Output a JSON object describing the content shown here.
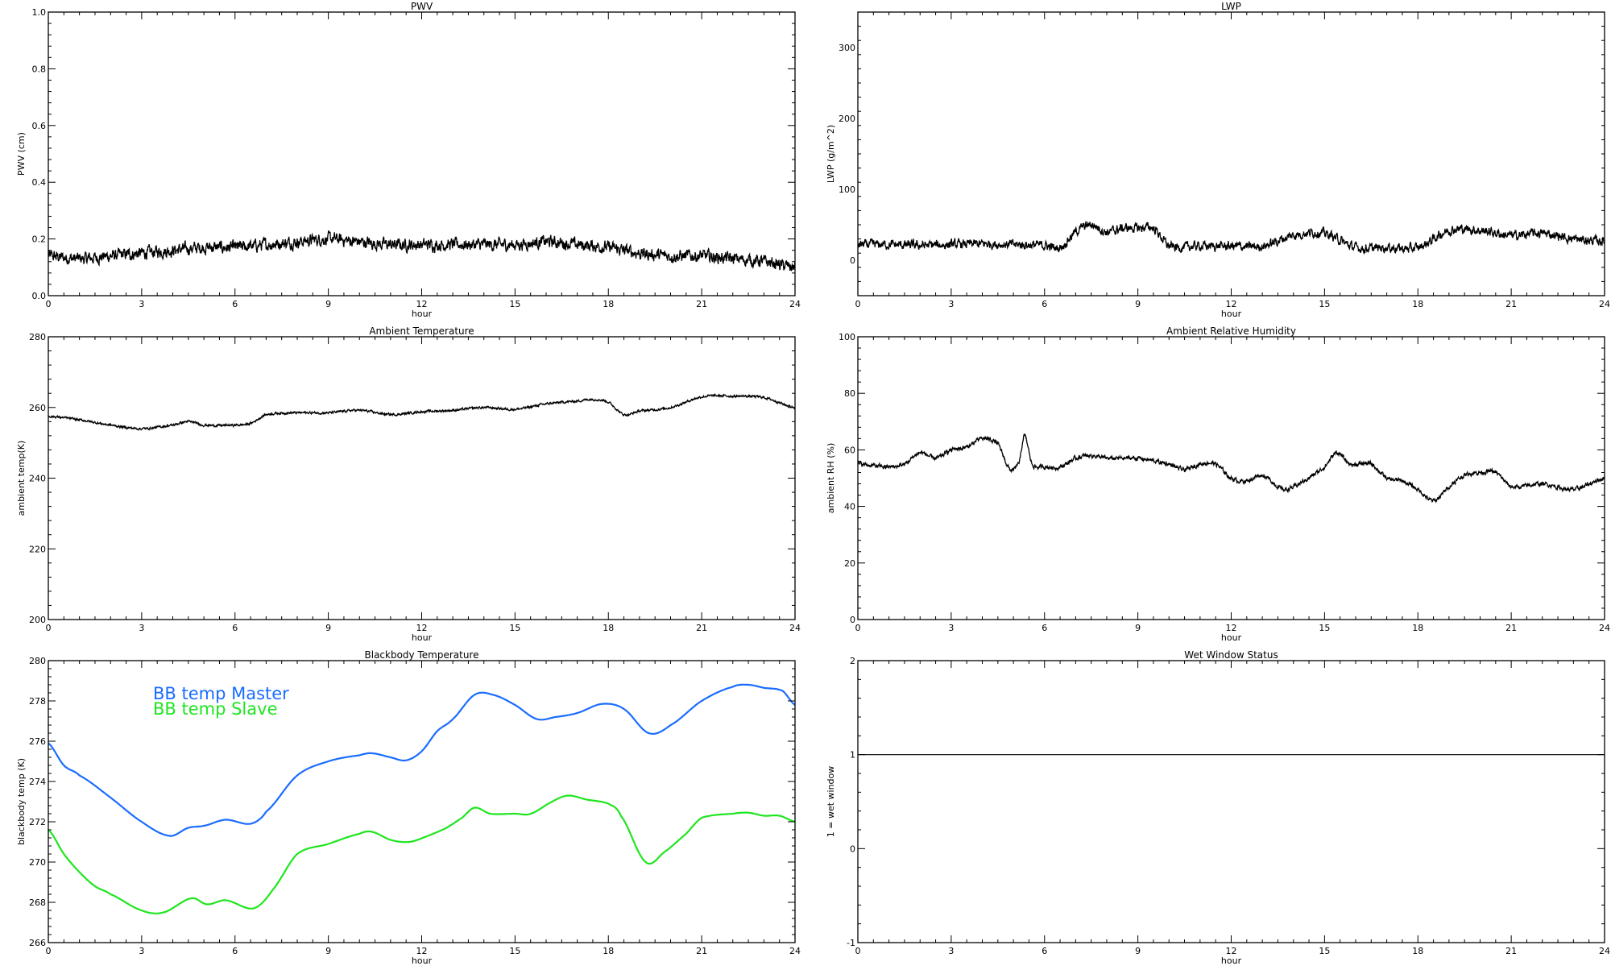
{
  "chart_data": [
    {
      "type": "line",
      "title": "PWV",
      "xlabel": "hour",
      "ylabel": "PWV (cm)",
      "xlim": [
        0,
        24
      ],
      "ylim": [
        0,
        1
      ],
      "xticks": [
        0,
        3,
        6,
        9,
        12,
        15,
        18,
        21,
        24
      ],
      "yticks": [
        0,
        0.2,
        0.4,
        0.6,
        0.8,
        1.0
      ],
      "ytick_labels": [
        "0.0",
        "0.2",
        "0.4",
        "0.6",
        "0.8",
        "1.0"
      ],
      "series": [
        {
          "name": "PWV",
          "color": "#000000",
          "noise": 0.02,
          "x": [
            0,
            1,
            2,
            3,
            4,
            5,
            6,
            7,
            8,
            9,
            10,
            11,
            12,
            13,
            14,
            15,
            16,
            17,
            18,
            19,
            20,
            21,
            22,
            23,
            24
          ],
          "y": [
            0.14,
            0.13,
            0.14,
            0.15,
            0.16,
            0.17,
            0.17,
            0.18,
            0.19,
            0.2,
            0.19,
            0.18,
            0.18,
            0.18,
            0.18,
            0.18,
            0.19,
            0.18,
            0.17,
            0.15,
            0.14,
            0.14,
            0.13,
            0.12,
            0.1
          ]
        }
      ]
    },
    {
      "type": "line",
      "title": "LWP",
      "xlabel": "hour",
      "ylabel": "LWP (g/m^2)",
      "xlim": [
        0,
        24
      ],
      "ylim": [
        -50,
        350
      ],
      "xticks": [
        0,
        3,
        6,
        9,
        12,
        15,
        18,
        21,
        24
      ],
      "yticks": [
        0,
        100,
        200,
        300
      ],
      "ytick_labels": [
        "0",
        "100",
        "200",
        "300"
      ],
      "series": [
        {
          "name": "LWP",
          "color": "#000000",
          "noise": 6,
          "x": [
            0,
            1,
            2,
            3,
            4,
            5,
            6,
            6.5,
            7,
            7.5,
            8,
            8.5,
            9,
            9.5,
            10,
            11,
            12,
            13,
            14,
            15,
            16,
            17,
            18,
            19,
            20,
            21,
            22,
            23,
            24
          ],
          "y": [
            22,
            22,
            21,
            22,
            23,
            22,
            21,
            18,
            40,
            50,
            40,
            45,
            45,
            45,
            20,
            20,
            20,
            20,
            35,
            38,
            18,
            18,
            18,
            42,
            42,
            35,
            38,
            30,
            27
          ]
        }
      ]
    },
    {
      "type": "line",
      "title": "Ambient Temperature",
      "xlabel": "hour",
      "ylabel": "ambient temp(K)",
      "xlim": [
        0,
        24
      ],
      "ylim": [
        200,
        280
      ],
      "xticks": [
        0,
        3,
        6,
        9,
        12,
        15,
        18,
        21,
        24
      ],
      "yticks": [
        200,
        220,
        240,
        260,
        280
      ],
      "ytick_labels": [
        "200",
        "220",
        "240",
        "260",
        "280"
      ],
      "series": [
        {
          "name": "ambient temp",
          "color": "#000000",
          "noise": 0.3,
          "x": [
            0,
            1,
            2,
            3,
            4,
            4.5,
            5,
            6,
            6.5,
            7,
            8,
            9,
            10,
            11,
            12,
            13,
            14,
            15,
            16,
            17,
            17.5,
            18,
            18.5,
            19,
            20,
            21,
            22,
            23,
            24
          ],
          "y": [
            257.5,
            256.5,
            255,
            254,
            255,
            256,
            255,
            255,
            255.5,
            258,
            258.5,
            258.5,
            259.2,
            258,
            258.8,
            259.2,
            260,
            259.5,
            261,
            261.8,
            262.3,
            261.5,
            258,
            259,
            260,
            263,
            263.2,
            262.8,
            260
          ]
        }
      ]
    },
    {
      "type": "line",
      "title": "Ambient Relative Humidity",
      "xlabel": "hour",
      "ylabel": "ambient RH (%)",
      "xlim": [
        0,
        24
      ],
      "ylim": [
        0,
        100
      ],
      "xticks": [
        0,
        3,
        6,
        9,
        12,
        15,
        18,
        21,
        24
      ],
      "yticks": [
        0,
        20,
        40,
        60,
        80,
        100
      ],
      "ytick_labels": [
        "0",
        "20",
        "40",
        "60",
        "80",
        "100"
      ],
      "series": [
        {
          "name": "ambient RH",
          "color": "#000000",
          "noise": 0.7,
          "x": [
            0,
            1,
            1.5,
            2,
            2.5,
            3,
            3.5,
            4,
            4.5,
            4.9,
            5.2,
            5.35,
            5.6,
            6,
            6.5,
            7,
            7.5,
            8,
            9,
            10,
            10.5,
            11,
            11.5,
            12,
            12.5,
            13,
            13.7,
            14.5,
            15,
            15.4,
            15.8,
            16.5,
            17,
            17.5,
            18,
            18.5,
            19,
            19.5,
            20,
            20.5,
            21,
            22,
            23,
            24
          ],
          "y": [
            55,
            54,
            55,
            59,
            57,
            60,
            61,
            64,
            62,
            53,
            56,
            65,
            55,
            54,
            54,
            57,
            58,
            57,
            57,
            55,
            53,
            55,
            55,
            50,
            49,
            51,
            46,
            50,
            54,
            59,
            55,
            55,
            50,
            49,
            46,
            42,
            47,
            51,
            52,
            52,
            47,
            48,
            46,
            50
          ]
        }
      ]
    },
    {
      "type": "line",
      "title": "Blackbody Temperature",
      "xlabel": "hour",
      "ylabel": "blackbody temp (K)",
      "xlim": [
        0,
        24
      ],
      "ylim": [
        266,
        280
      ],
      "xticks": [
        0,
        3,
        6,
        9,
        12,
        15,
        18,
        21,
        24
      ],
      "yticks": [
        266,
        268,
        270,
        272,
        274,
        276,
        278,
        280
      ],
      "ytick_labels": [
        "266",
        "268",
        "270",
        "272",
        "274",
        "276",
        "278",
        "280"
      ],
      "legend": {
        "placement": "top-left",
        "entries": [
          "BB temp Master",
          "BB temp Slave"
        ]
      },
      "series": [
        {
          "name": "BB temp Master",
          "color": "#1a6cff",
          "noise": 0,
          "x": [
            0,
            0.5,
            1,
            2,
            3,
            3.9,
            4.5,
            5,
            5.7,
            6.5,
            7,
            8,
            9,
            10,
            10.4,
            11,
            11.5,
            12,
            12.5,
            13,
            13.7,
            14.3,
            15,
            15.7,
            16.3,
            17,
            17.8,
            18.5,
            19.3,
            20,
            21,
            22,
            22.5,
            23,
            23.6,
            24
          ],
          "y": [
            275.9,
            274.8,
            274.3,
            273.2,
            272,
            271.3,
            271.7,
            271.8,
            272.1,
            271.9,
            272.5,
            274.3,
            275,
            275.3,
            275.4,
            275.2,
            275.05,
            275.5,
            276.5,
            277.1,
            278.3,
            278.3,
            277.8,
            277.1,
            277.2,
            277.4,
            277.85,
            277.6,
            276.4,
            276.8,
            278,
            278.7,
            278.8,
            278.65,
            278.5,
            277.8
          ]
        },
        {
          "name": "BB temp Slave",
          "color": "#1ee61e",
          "noise": 0,
          "x": [
            0,
            0.5,
            1,
            1.5,
            2,
            3,
            3.7,
            4.6,
            5.1,
            5.7,
            6.6,
            7.2,
            8,
            9,
            10,
            10.4,
            11,
            11.6,
            12.2,
            12.8,
            13.3,
            13.7,
            14.2,
            15,
            15.5,
            16.2,
            16.7,
            17.3,
            18,
            18.4,
            19.2,
            19.8,
            20.5,
            21,
            22,
            22.5,
            23,
            23.5,
            24
          ],
          "y": [
            271.6,
            270.4,
            269.5,
            268.8,
            268.4,
            267.6,
            267.5,
            268.2,
            267.9,
            268.1,
            267.7,
            268.6,
            270.4,
            270.9,
            271.4,
            271.5,
            271.1,
            271,
            271.3,
            271.7,
            272.2,
            272.7,
            272.4,
            272.4,
            272.4,
            273,
            273.3,
            273.1,
            272.9,
            272.3,
            270,
            270.5,
            271.4,
            272.2,
            272.4,
            272.45,
            272.3,
            272.3,
            272
          ]
        }
      ]
    },
    {
      "type": "line",
      "title": "Wet Window Status",
      "xlabel": "hour",
      "ylabel": "1 = wet window",
      "xlim": [
        0,
        24
      ],
      "ylim": [
        -1,
        2
      ],
      "xticks": [
        0,
        3,
        6,
        9,
        12,
        15,
        18,
        21,
        24
      ],
      "yticks": [
        -1,
        0,
        1,
        2
      ],
      "ytick_labels": [
        "-1",
        "0",
        "1",
        "2"
      ],
      "series": [
        {
          "name": "wet window",
          "color": "#000000",
          "noise": 0,
          "x": [
            0,
            24
          ],
          "y": [
            1,
            1
          ]
        }
      ]
    }
  ]
}
